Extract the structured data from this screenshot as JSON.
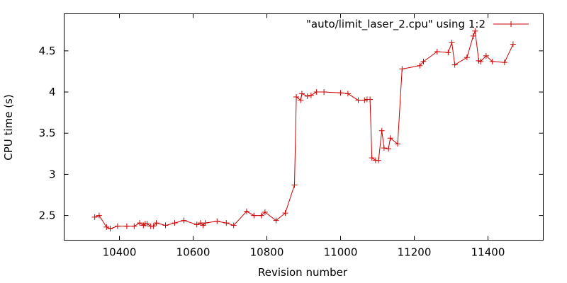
{
  "chart_data": {
    "type": "line",
    "title": "",
    "xlabel": "Revision number",
    "ylabel": "CPU time (s)",
    "xlim": [
      10250,
      11550
    ],
    "ylim": [
      2.2,
      4.95
    ],
    "x_ticks": [
      10400,
      10600,
      10800,
      11000,
      11200,
      11400
    ],
    "y_ticks": [
      2.5,
      3,
      3.5,
      4,
      4.5
    ],
    "y_tick_labels": [
      "2.5",
      "3",
      "3.5",
      "4",
      "4.5"
    ],
    "grid": false,
    "legend_position": "top-right",
    "series": [
      {
        "name": "\"auto/limit_laser_2.cpu\" using 1:2",
        "color": "#cc0000",
        "marker": "plus",
        "x": [
          10333,
          10345,
          10365,
          10375,
          10395,
          10420,
          10440,
          10455,
          10465,
          10470,
          10475,
          10485,
          10492,
          10500,
          10525,
          10550,
          10575,
          10610,
          10620,
          10627,
          10633,
          10665,
          10690,
          10710,
          10745,
          10765,
          10785,
          10795,
          10825,
          10850,
          10875,
          10880,
          10892,
          10895,
          10910,
          10920,
          10935,
          10955,
          11000,
          11020,
          11048,
          11065,
          11072,
          11080,
          11085,
          11095,
          11103,
          11112,
          11118,
          11130,
          11135,
          11155,
          11167,
          11215,
          11225,
          11262,
          11292,
          11302,
          11310,
          11343,
          11360,
          11365,
          11375,
          11380,
          11395,
          11412,
          11445,
          11468
        ],
        "y": [
          2.48,
          2.5,
          2.36,
          2.34,
          2.37,
          2.37,
          2.37,
          2.41,
          2.38,
          2.4,
          2.4,
          2.37,
          2.37,
          2.41,
          2.38,
          2.41,
          2.44,
          2.39,
          2.41,
          2.38,
          2.41,
          2.43,
          2.41,
          2.38,
          2.55,
          2.5,
          2.5,
          2.54,
          2.44,
          2.53,
          2.87,
          3.94,
          3.9,
          3.98,
          3.95,
          3.96,
          4.0,
          4.0,
          3.99,
          3.98,
          3.9,
          3.9,
          3.91,
          3.91,
          3.2,
          3.17,
          3.17,
          3.53,
          3.32,
          3.31,
          3.44,
          3.37,
          4.28,
          4.32,
          4.37,
          4.49,
          4.48,
          4.6,
          4.33,
          4.42,
          4.68,
          4.74,
          4.38,
          4.37,
          4.44,
          4.37,
          4.36,
          4.58
        ]
      }
    ]
  }
}
